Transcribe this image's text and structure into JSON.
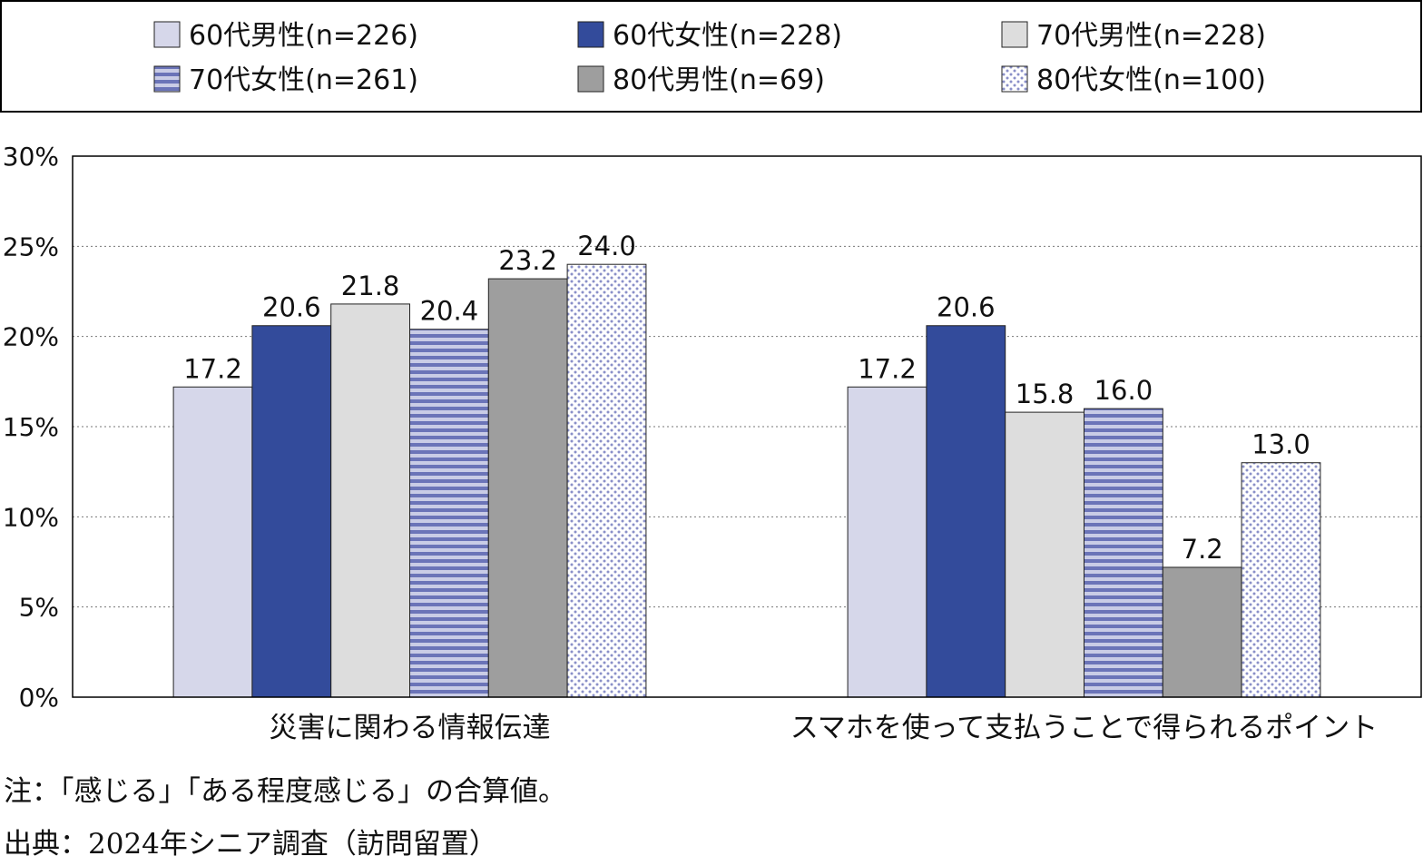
{
  "chart_data": {
    "type": "bar",
    "categories": [
      "災害に関わる情報伝達",
      "スマホを使って支払うことで得られるポイント"
    ],
    "series": [
      {
        "name": "60代男性(n=226)",
        "values": [
          17.2,
          17.2
        ],
        "color": "#d6d7ea",
        "pattern": "solid"
      },
      {
        "name": "60代女性(n=228)",
        "values": [
          20.6,
          20.6
        ],
        "color": "#334b9b",
        "pattern": "solid"
      },
      {
        "name": "70代男性(n=228)",
        "values": [
          21.8,
          15.8
        ],
        "color": "#dddddd",
        "pattern": "solid"
      },
      {
        "name": "70代女性(n=261)",
        "values": [
          20.4,
          16.0
        ],
        "color": "#6b74b8",
        "pattern": "horizontal-stripes"
      },
      {
        "name": "80代男性(n=69)",
        "values": [
          23.2,
          7.2
        ],
        "color": "#9e9e9e",
        "pattern": "solid"
      },
      {
        "name": "80代女性(n=100)",
        "values": [
          24.0,
          13.0
        ],
        "color": "#8a90c8",
        "pattern": "dots"
      }
    ],
    "data_labels": [
      [
        "17.2",
        "20.6",
        "21.8",
        "20.4",
        "23.2",
        "24.0"
      ],
      [
        "17.2",
        "20.6",
        "15.8",
        "16.0",
        "7.2",
        "13.0"
      ]
    ],
    "y_ticks": [
      "0%",
      "5%",
      "10%",
      "15%",
      "20%",
      "25%",
      "30%"
    ],
    "ylim": [
      0,
      30
    ],
    "grid": "horizontal dotted",
    "legend_position": "top"
  },
  "footnotes": {
    "note": "注：「感じる」「ある程度感じる」の合算値。",
    "source": "出典：2024年シニア調査（訪問留置）"
  }
}
